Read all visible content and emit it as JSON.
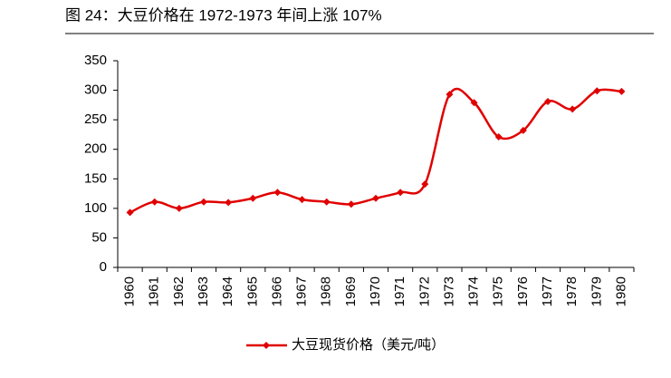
{
  "chart_data": {
    "type": "line",
    "title": "图 24：大豆价格在 1972-1973 年间上涨 107%",
    "categories": [
      "1960",
      "1961",
      "1962",
      "1963",
      "1964",
      "1965",
      "1966",
      "1967",
      "1968",
      "1969",
      "1970",
      "1971",
      "1972",
      "1973",
      "1974",
      "1975",
      "1976",
      "1977",
      "1978",
      "1979",
      "1980"
    ],
    "series": [
      {
        "name": "大豆现货价格（美元/吨）",
        "color": "#e00000",
        "values": [
          93,
          111,
          100,
          111,
          110,
          117,
          127,
          115,
          111,
          107,
          117,
          127,
          141,
          293,
          279,
          221,
          232,
          281,
          268,
          299,
          298
        ]
      }
    ],
    "ylim": [
      0,
      350
    ],
    "yticks": [
      0,
      50,
      100,
      150,
      200,
      250,
      300,
      350
    ],
    "smooth": true,
    "legend": "bottom"
  }
}
